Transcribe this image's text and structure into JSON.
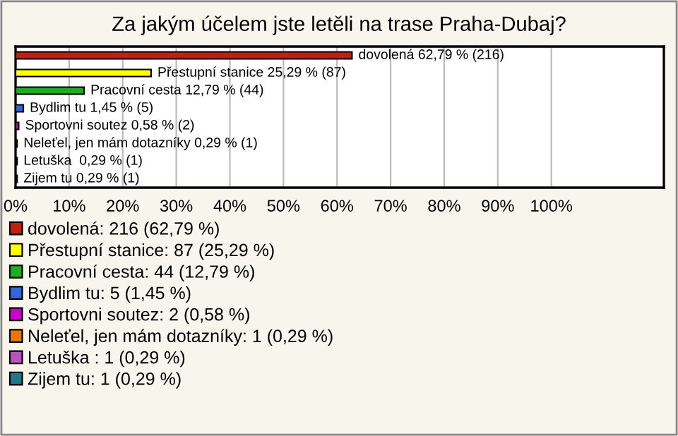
{
  "chart_data": {
    "type": "bar",
    "orientation": "horizontal",
    "title": "Za jakým účelem jste letěli na trase Praha-Dubaj?",
    "categories": [
      null,
      null,
      null,
      null,
      null,
      null,
      null,
      null
    ],
    "series": [
      {
        "name": "dovolená: 216 (62,79 %)",
        "color": "#c0200f",
        "values": [
          62.79,
          null,
          null,
          null,
          null,
          null,
          null,
          null
        ],
        "value_labels": [
          "dovolená 62,79 % (216)",
          null,
          null,
          null,
          null,
          null,
          null,
          null
        ]
      },
      {
        "name": "Přestupní stanice: 87 (25,29 %)",
        "color": "#ffff00",
        "values": [
          null,
          25.29,
          null,
          null,
          null,
          null,
          null,
          null
        ],
        "value_labels": [
          null,
          "Přestupní stanice 25,29 % (87)",
          null,
          null,
          null,
          null,
          null,
          null
        ]
      },
      {
        "name": "Pracovní cesta: 44 (12,79 %)",
        "color": "#22aa22",
        "values": [
          null,
          null,
          12.79,
          null,
          null,
          null,
          null,
          null
        ],
        "value_labels": [
          null,
          null,
          "Pracovní cesta 12,79 % (44)",
          null,
          null,
          null,
          null,
          null
        ]
      },
      {
        "name": "Bydlim tu: 5 (1,45 %)",
        "color": "#3366dd",
        "values": [
          null,
          null,
          null,
          1.45,
          null,
          null,
          null,
          null
        ],
        "value_labels": [
          null,
          null,
          null,
          "Bydlim tu 1,45 % (5)",
          null,
          null,
          null,
          null
        ]
      },
      {
        "name": "Sportovni soutez: 2 (0,58 %)",
        "color": "#cc00cc",
        "values": [
          null,
          null,
          null,
          null,
          0.58,
          null,
          null,
          null
        ],
        "value_labels": [
          null,
          null,
          null,
          null,
          "Sportovni soutez 0,58 % (2)",
          null,
          null,
          null
        ]
      },
      {
        "name": "Neleťel, jen mám dotazníky: 1 (0,29 %)",
        "color": "#ee7700",
        "values": [
          null,
          null,
          null,
          null,
          null,
          0.29,
          null,
          null
        ],
        "value_labels": [
          null,
          null,
          null,
          null,
          null,
          "Neleťel, jen mám dotazníky 0,29 % (1)",
          null,
          null
        ]
      },
      {
        "name": "Letuška : 1 (0,29 %)",
        "color": "#bb55bb",
        "values": [
          null,
          null,
          null,
          null,
          null,
          null,
          0.29,
          null
        ],
        "value_labels": [
          null,
          null,
          null,
          null,
          null,
          null,
          "Letuška  0,29 % (1)",
          null
        ]
      },
      {
        "name": "Zijem tu: 1 (0,29 %)",
        "color": "#227788",
        "values": [
          null,
          null,
          null,
          null,
          null,
          null,
          null,
          0.29
        ],
        "value_labels": [
          null,
          null,
          null,
          null,
          null,
          null,
          null,
          "Zijem tu 0,29 % (1)"
        ]
      }
    ],
    "xlim": [
      0,
      121
    ],
    "xticks": [
      {
        "value": 0,
        "label": "0%"
      },
      {
        "value": 10,
        "label": "10%"
      },
      {
        "value": 20,
        "label": "20%"
      },
      {
        "value": 30,
        "label": "30%"
      },
      {
        "value": 40,
        "label": "40%"
      },
      {
        "value": 50,
        "label": "50%"
      },
      {
        "value": 60,
        "label": "60%"
      },
      {
        "value": 70,
        "label": "70%"
      },
      {
        "value": 80,
        "label": "80%"
      },
      {
        "value": 90,
        "label": "90%"
      },
      {
        "value": 100,
        "label": "100%"
      }
    ],
    "grid": "x",
    "legend": "bottom",
    "tick_labels": "x"
  }
}
